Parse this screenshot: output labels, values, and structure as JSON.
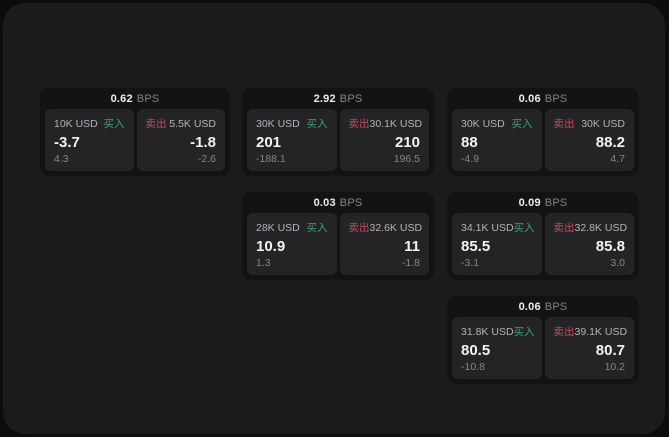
{
  "labels": {
    "bps_unit": "BPS",
    "buy": "买入",
    "sell": "卖出"
  },
  "colors": {
    "page_bg": "#0c0c0e",
    "window_bg": "#1b1b1d",
    "card_bg": "#131314",
    "panel_bg": "#242427",
    "buy_green": "#3da173",
    "sell_red": "#c24b5e",
    "text_primary": "#f3f3f4",
    "text_muted": "#85858a",
    "text_amount": "#b4b4b8"
  },
  "cards": [
    {
      "bps": "0.62",
      "buy": {
        "amount": "10K USD",
        "price": "-3.7",
        "delta": "4.3"
      },
      "sell": {
        "amount": "5.5K USD",
        "price": "-1.8",
        "delta": "-2.6"
      }
    },
    {
      "bps": "2.92",
      "buy": {
        "amount": "30K USD",
        "price": "201",
        "delta": "-188.1"
      },
      "sell": {
        "amount": "30.1K USD",
        "price": "210",
        "delta": "196.5"
      }
    },
    {
      "bps": "0.06",
      "buy": {
        "amount": "30K USD",
        "price": "88",
        "delta": "-4.9"
      },
      "sell": {
        "amount": "30K USD",
        "price": "88.2",
        "delta": "4.7"
      }
    },
    {
      "bps": "0.03",
      "buy": {
        "amount": "28K USD",
        "price": "10.9",
        "delta": "1.3"
      },
      "sell": {
        "amount": "32.6K USD",
        "price": "11",
        "delta": "-1.8"
      }
    },
    {
      "bps": "0.09",
      "buy": {
        "amount": "34.1K USD",
        "price": "85.5",
        "delta": "-3.1"
      },
      "sell": {
        "amount": "32.8K USD",
        "price": "85.8",
        "delta": "3.0"
      }
    },
    {
      "bps": "0.06",
      "buy": {
        "amount": "31.8K USD",
        "price": "80.5",
        "delta": "-10.8"
      },
      "sell": {
        "amount": "39.1K USD",
        "price": "80.7",
        "delta": "10.2"
      }
    }
  ]
}
